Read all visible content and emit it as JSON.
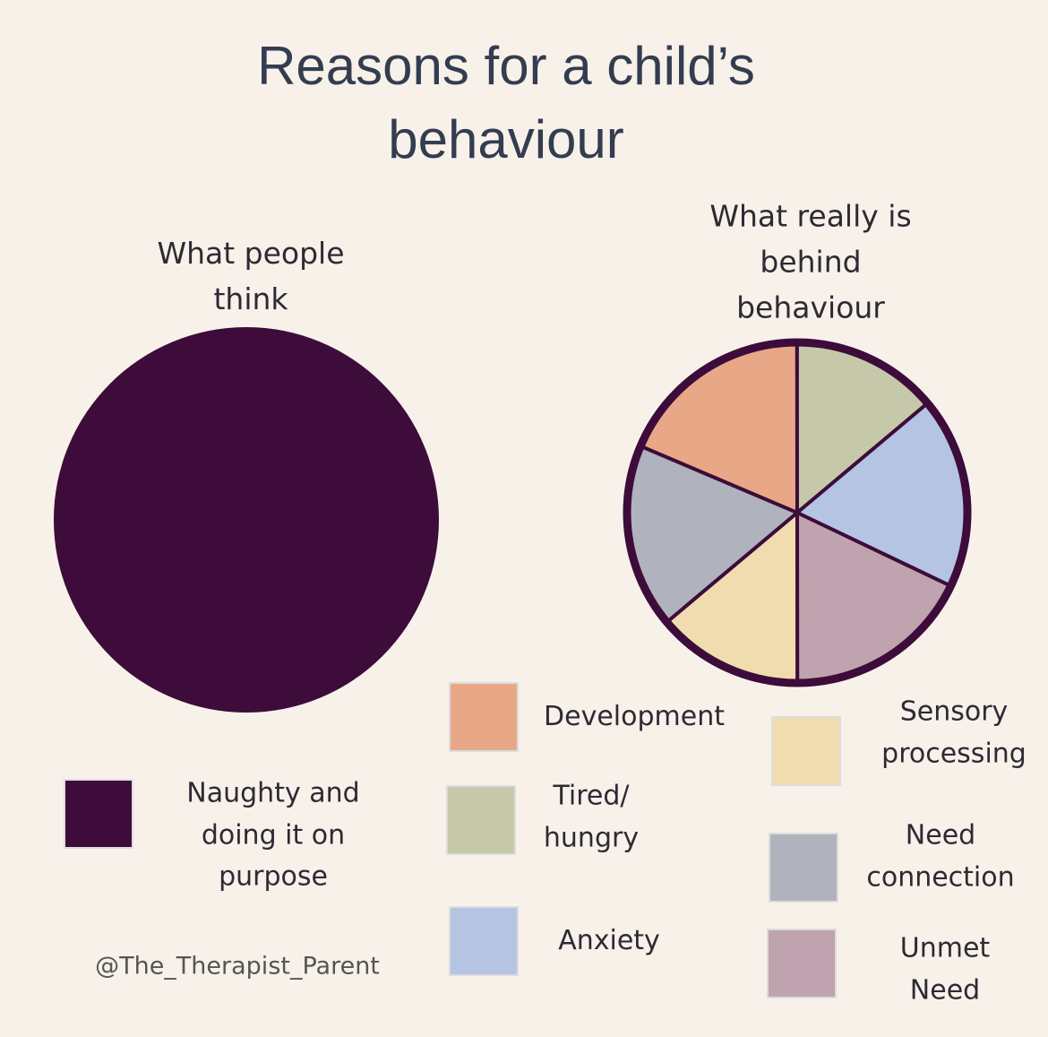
{
  "title": "Reasons for a child’s\nbehaviour",
  "credit": "@The_Therapist_Parent",
  "chart_data": [
    {
      "type": "pie",
      "subtitle": "What people\nthink",
      "categories": [
        "Naughty and\ndoing it on\npurpose"
      ],
      "values": [
        100
      ],
      "colors": [
        "#3d0c3a"
      ]
    },
    {
      "type": "pie",
      "subtitle": "What really is\nbehind behaviour",
      "categories": [
        "Development",
        "Tired/\nhungry",
        "Anxiety",
        "Unmet\nNeed",
        "Sensory\nprocessing",
        "Need\nconnection"
      ],
      "values": [
        18.6,
        13.9,
        18.2,
        17.9,
        13.9,
        17.5
      ],
      "colors": [
        "#e8a888",
        "#c5c9a9",
        "#b4c4e2",
        "#bfa3ae",
        "#f0dcae",
        "#b0b2bd"
      ],
      "outline": "#3d0c3a"
    }
  ]
}
